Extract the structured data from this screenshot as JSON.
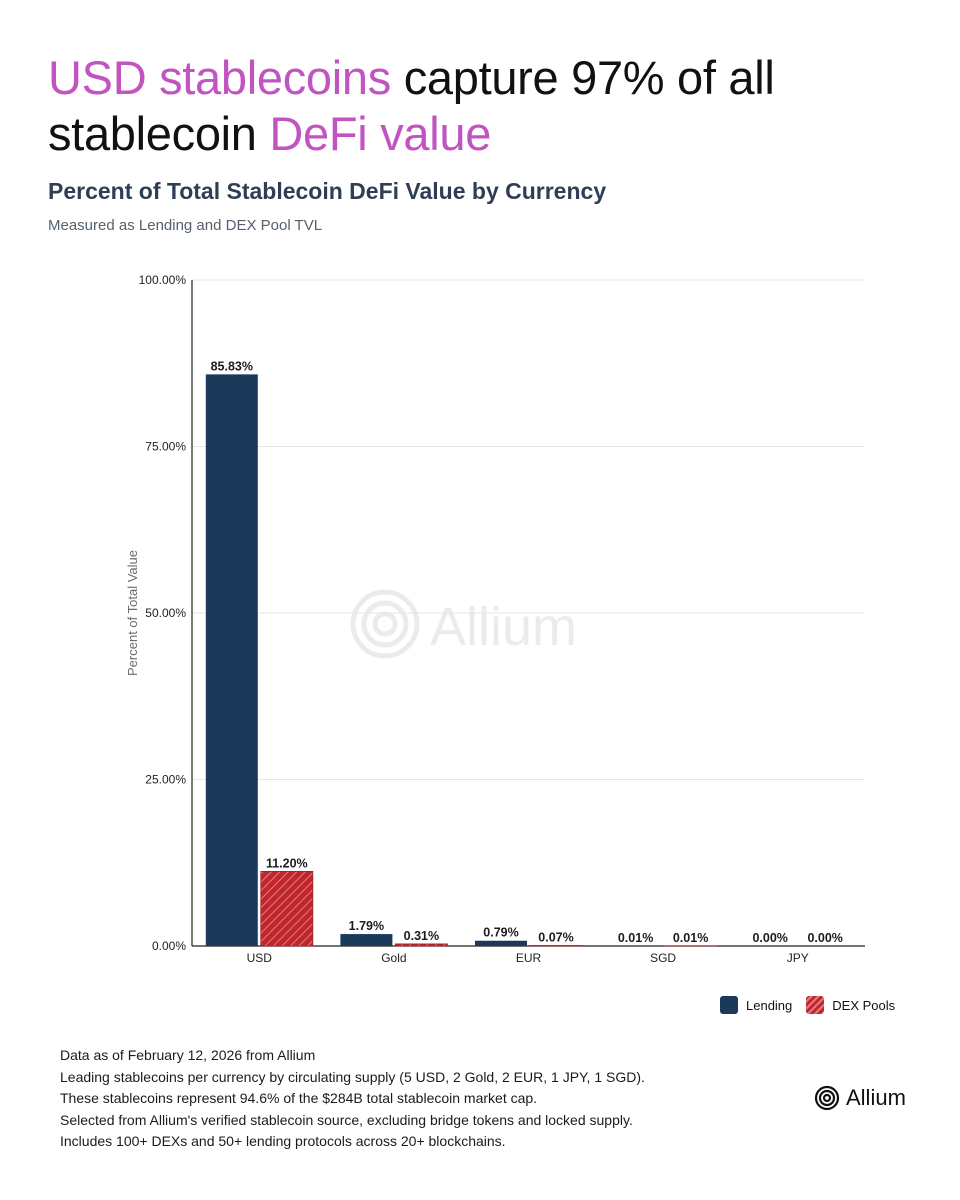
{
  "headline": {
    "part1": "USD stablecoins",
    "part2": " capture 97% of all stablecoin ",
    "part3": "DeFi value"
  },
  "title": "Percent of Total Stablecoin DeFi Value by Currency",
  "subtitle": "Measured as Lending and DEX Pool TVL",
  "watermark": "Allium",
  "colors": {
    "accent": "#c154c1",
    "lending": "#1b3a5b",
    "dex": "#c0262c"
  },
  "chart_data": {
    "type": "bar",
    "categories": [
      "USD",
      "Gold",
      "EUR",
      "SGD",
      "JPY"
    ],
    "series": [
      {
        "name": "Lending",
        "values": [
          85.83,
          1.79,
          0.79,
          0.01,
          0.0
        ],
        "labels": [
          "85.83%",
          "1.79%",
          "0.79%",
          "0.01%",
          "0.00%"
        ]
      },
      {
        "name": "DEX Pools",
        "values": [
          11.2,
          0.31,
          0.07,
          0.01,
          0.0
        ],
        "labels": [
          "11.20%",
          "0.31%",
          "0.07%",
          "0.01%",
          "0.00%"
        ]
      }
    ],
    "ylabel": "Percent of Total Value",
    "ylim": [
      0,
      100
    ],
    "yticks": [
      0,
      25,
      50,
      75,
      100
    ],
    "ytick_labels": [
      "0.00%",
      "25.00%",
      "50.00%",
      "75.00%",
      "100.00%"
    ],
    "grid": true,
    "legend_position": "bottom-right"
  },
  "footnotes": [
    "Data as of February 12, 2026 from Allium",
    "Leading stablecoins per currency by circulating supply (5 USD, 2 Gold, 2 EUR, 1 JPY, 1 SGD).",
    "These stablecoins represent 94.6% of the $284B total stablecoin market cap.",
    "Selected from Allium's verified stablecoin source, excluding bridge tokens and locked supply.",
    "Includes 100+ DEXs and 50+ lending protocols across 20+ blockchains."
  ],
  "logo": {
    "text": "Allium",
    "icon": "allium-rings-icon"
  }
}
